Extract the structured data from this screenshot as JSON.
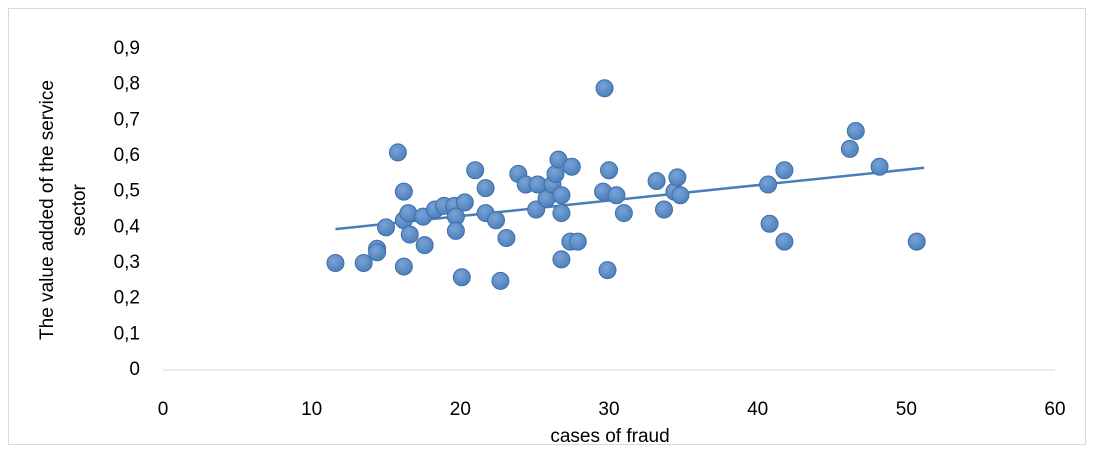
{
  "chart_data": {
    "type": "scatter",
    "x_label": "cases of fraud",
    "y_label_lines": [
      "The  value added of the service",
      "sector"
    ],
    "color": "#4a7ebb",
    "x": [
      11.6,
      13.5,
      14.4,
      14.4,
      15.0,
      15.8,
      16.2,
      16.2,
      16.2,
      16.5,
      16.6,
      17.5,
      17.6,
      18.3,
      18.9,
      19.6,
      19.7,
      19.7,
      20.1,
      20.3,
      21.0,
      21.7,
      21.7,
      22.4,
      22.7,
      23.1,
      23.9,
      24.4,
      25.1,
      25.2,
      25.8,
      26.2,
      26.4,
      26.6,
      26.8,
      26.8,
      26.8,
      27.4,
      27.5,
      27.9,
      29.7,
      29.6,
      29.9,
      30.0,
      30.5,
      31.0,
      33.2,
      33.7,
      34.4,
      34.6,
      34.8,
      40.7,
      40.8,
      41.8,
      41.8,
      46.2,
      46.6,
      48.2,
      50.7
    ],
    "values": [
      0.3,
      0.3,
      0.34,
      0.33,
      0.4,
      0.61,
      0.29,
      0.42,
      0.5,
      0.44,
      0.38,
      0.43,
      0.35,
      0.45,
      0.46,
      0.46,
      0.43,
      0.39,
      0.26,
      0.47,
      0.56,
      0.51,
      0.44,
      0.42,
      0.25,
      0.37,
      0.55,
      0.52,
      0.45,
      0.52,
      0.48,
      0.52,
      0.55,
      0.59,
      0.31,
      0.49,
      0.44,
      0.36,
      0.57,
      0.36,
      0.79,
      0.5,
      0.28,
      0.56,
      0.49,
      0.44,
      0.53,
      0.45,
      0.5,
      0.54,
      0.49,
      0.52,
      0.41,
      0.36,
      0.56,
      0.62,
      0.67,
      0.57,
      0.36
    ],
    "trendline": {
      "color": "#4a7ebb",
      "x": [
        11.6,
        51.2
      ],
      "values": [
        0.395,
        0.567
      ]
    },
    "xlim": [
      0,
      60
    ],
    "xticks": [
      0,
      10,
      20,
      30,
      40,
      50,
      60
    ],
    "ylim": [
      0,
      0.9
    ],
    "yticks": [
      0,
      {
        "value": 0.1,
        "label": "0,1"
      },
      {
        "value": 0.2,
        "label": "0,2"
      },
      {
        "value": 0.3,
        "label": "0,3"
      },
      {
        "value": 0.4,
        "label": "0,4"
      },
      {
        "value": 0.5,
        "label": "0,5"
      },
      {
        "value": 0.6,
        "label": "0,6"
      },
      {
        "value": 0.7,
        "label": "0,7"
      },
      {
        "value": 0.8,
        "label": "0,8"
      },
      {
        "value": 0.9,
        "label": "0,9"
      }
    ],
    "grid": false
  }
}
